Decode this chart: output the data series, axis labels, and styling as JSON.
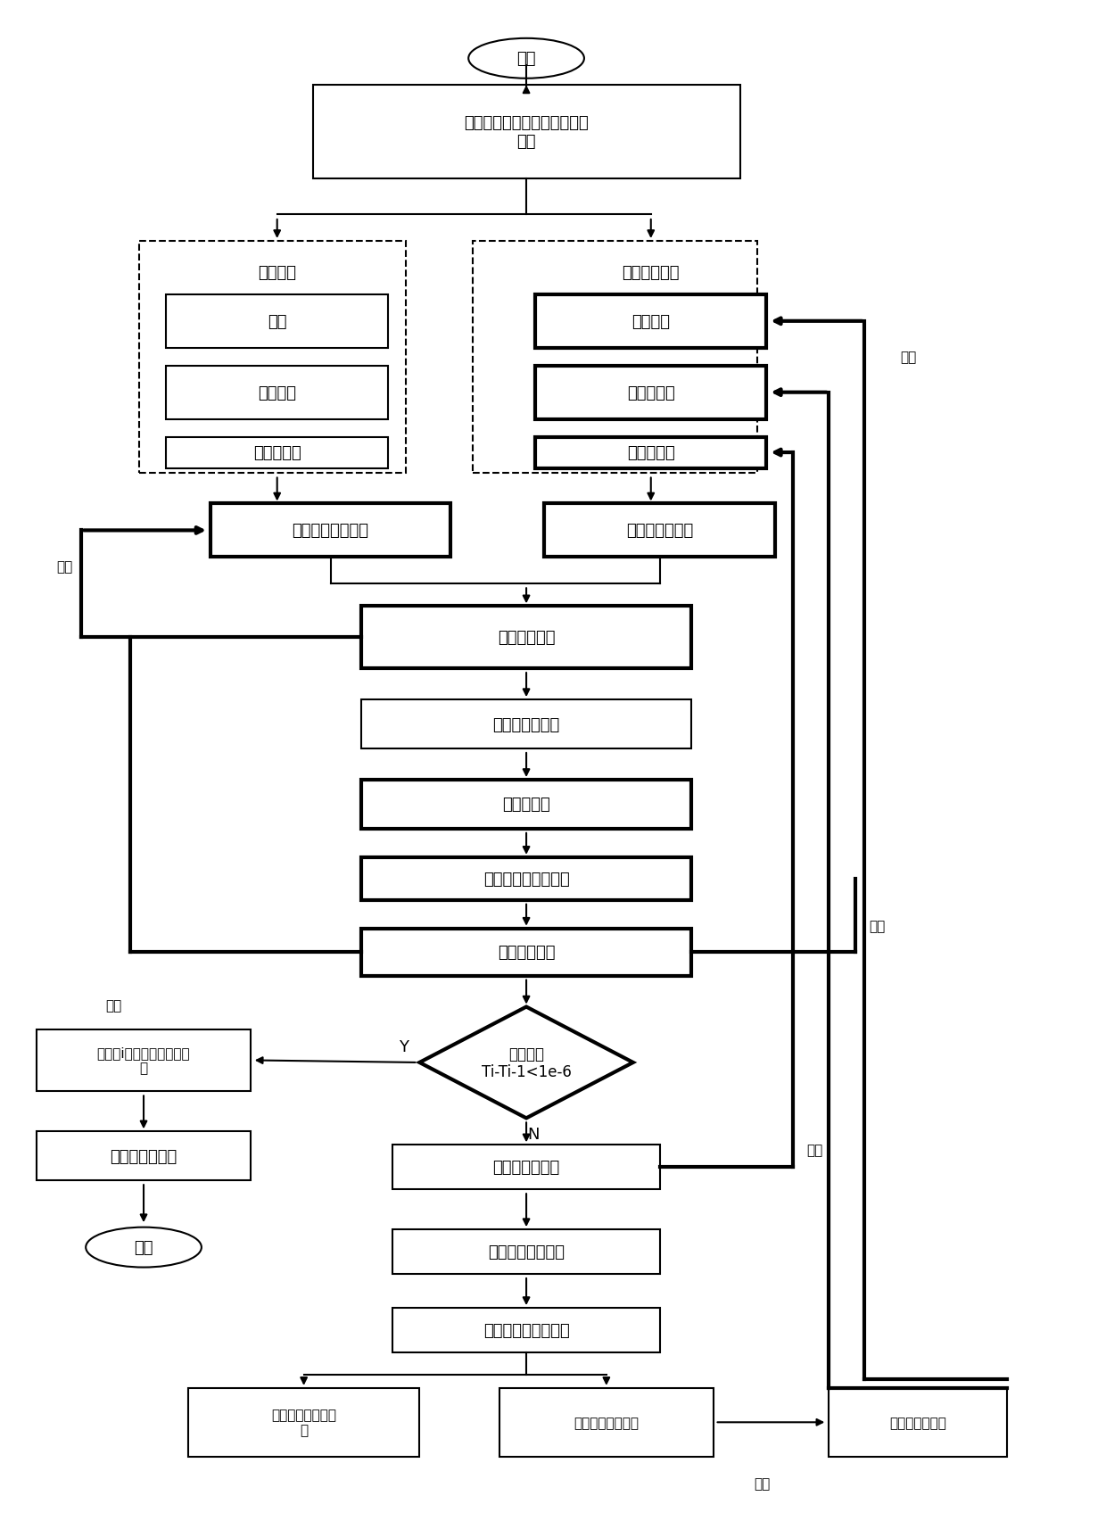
{
  "fig_width": 12.4,
  "fig_height": 17.06,
  "bg_color": "#ffffff",
  "nodes": {
    "start_label": "开始",
    "init_label": "将轴承的初始温度设定为环境\n温度",
    "run_cond_label": "运行条件",
    "temp_var_label": "温度相关变量",
    "speed_label": "转速",
    "bearing_size_label": "轴承尺寸",
    "assembly_label": "装配条件",
    "preload_label": "轴承预紧力",
    "init_preload_label": "初始预紧力",
    "lubricant_label": "润滑剂粘度",
    "conv_label": "计算对流换热系数",
    "heatgen_label": "计算轴承发热量",
    "contact_label": "计算接触热阻",
    "transient_label": "进行瞬态热分析",
    "tempdist_label": "温度场分布",
    "savetemp_label": "保存所有节点的温度",
    "extract_label": "提取轴承温度",
    "diamond_label": "轴承温度\nTi-Ti-1<1e-6",
    "output_label": "输出第i子步的温度和热变\n形",
    "errcomp_label": "进行热误差补偿",
    "end_label": "结束",
    "modlub_label": "修改润滑剂粘度",
    "analyze_label": "分析主轴系统结构",
    "savedeform_label": "保存所有节点的变形",
    "moddform_label": "修改轴向和径向变\n形",
    "extractdisp_label": "提取轴的轴向位移",
    "correct_label": "修正轴承预紧力",
    "update_label": "更新",
    "Y_label": "Y",
    "N_label": "N"
  }
}
